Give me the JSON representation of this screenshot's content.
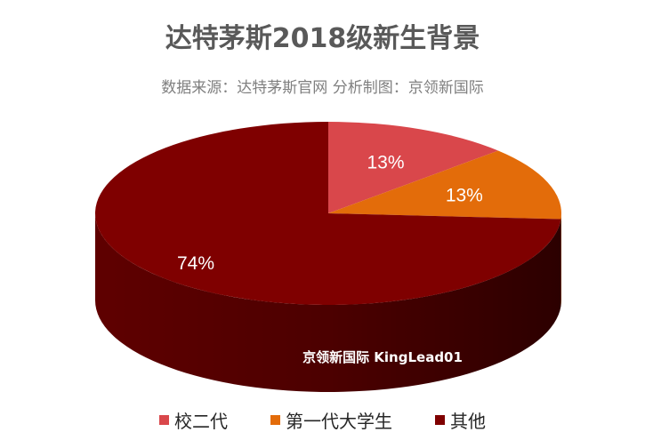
{
  "chart_data": {
    "type": "pie",
    "title": "达特茅斯2018级新生背景",
    "subtitle": "数据来源：达特茅斯官网 分析制图：京领新国际",
    "watermark": "京领新国际 KingLead01",
    "style": "3d",
    "legend_position": "bottom",
    "slices": [
      {
        "label": "校二代",
        "value": 13,
        "data_label": "13%",
        "color": "#d9474b"
      },
      {
        "label": "第一代大学生",
        "value": 13,
        "data_label": "13%",
        "color": "#e36c0a"
      },
      {
        "label": "其他",
        "value": 74,
        "data_label": "74%",
        "color": "#7f0000"
      }
    ]
  }
}
